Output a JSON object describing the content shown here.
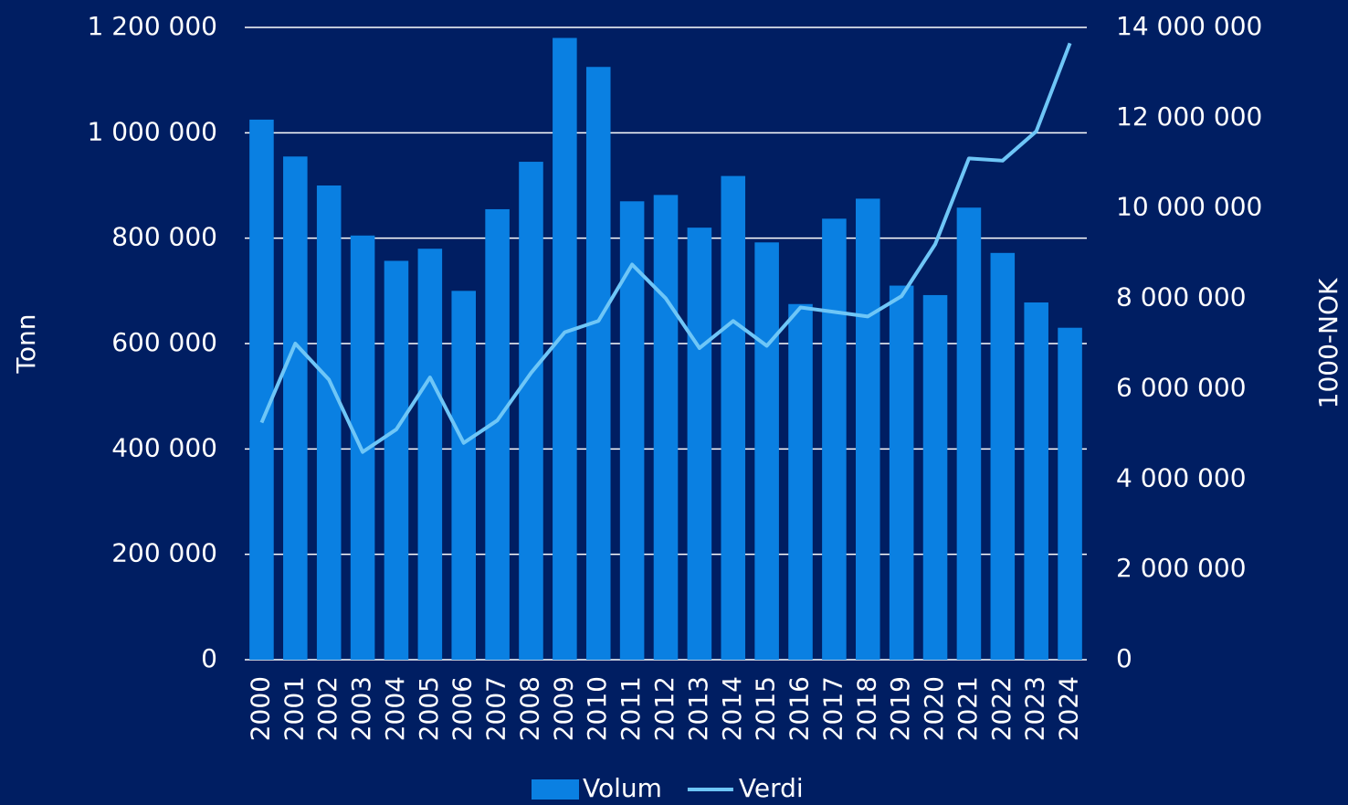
{
  "chart_data": {
    "type": "bar-line",
    "ylabel": "Tonn",
    "y2label": "1000-NOK",
    "categories": [
      "2000",
      "2001",
      "2002",
      "2003",
      "2004",
      "2005",
      "2006",
      "2007",
      "2008",
      "2009",
      "2010",
      "2011",
      "2012",
      "2013",
      "2014",
      "2015",
      "2016",
      "2017",
      "2018",
      "2019",
      "2020",
      "2021",
      "2022",
      "2023",
      "2024"
    ],
    "series": [
      {
        "name": "Volum",
        "type": "bar",
        "color": "#0a80e2",
        "axis": "y",
        "values": [
          1025000,
          955000,
          900000,
          805000,
          757000,
          780000,
          700000,
          855000,
          945000,
          1180000,
          1125000,
          870000,
          882000,
          820000,
          918000,
          792000,
          675000,
          837000,
          875000,
          710000,
          692000,
          858000,
          772000,
          678000,
          630000
        ]
      },
      {
        "name": "Verdi",
        "type": "line",
        "color": "#6ec6f7",
        "axis": "y2",
        "values": [
          5250000,
          7000000,
          6200000,
          4600000,
          5100000,
          6250000,
          4800000,
          5300000,
          6350000,
          7250000,
          7500000,
          8750000,
          8000000,
          6900000,
          7500000,
          6950000,
          7800000,
          7700000,
          7600000,
          8050000,
          9200000,
          11100000,
          11050000,
          11700000,
          13650000
        ]
      }
    ],
    "ylim": [
      0,
      1200000
    ],
    "yticks": [
      0,
      {
        "value": 200000,
        "label": "200 000"
      },
      {
        "value": 400000,
        "label": "400 000"
      },
      {
        "value": 600000,
        "label": "600 000"
      },
      {
        "value": 800000,
        "label": "800 000"
      },
      {
        "value": 1000000,
        "label": "1 000 000"
      },
      {
        "value": 1200000,
        "label": "1 200 000"
      }
    ],
    "y2lim": [
      0,
      14000000
    ],
    "y2ticks": [
      0,
      {
        "value": 2000000,
        "label": "2 000 000"
      },
      {
        "value": 4000000,
        "label": "4 000 000"
      },
      {
        "value": 6000000,
        "label": "6 000 000"
      },
      {
        "value": 8000000,
        "label": "8 000 000"
      },
      {
        "value": 10000000,
        "label": "10 000 000"
      },
      {
        "value": 12000000,
        "label": "12 000 000"
      },
      {
        "value": 14000000,
        "label": "14 000 000"
      }
    ],
    "grid": true,
    "legend": "bottom"
  }
}
